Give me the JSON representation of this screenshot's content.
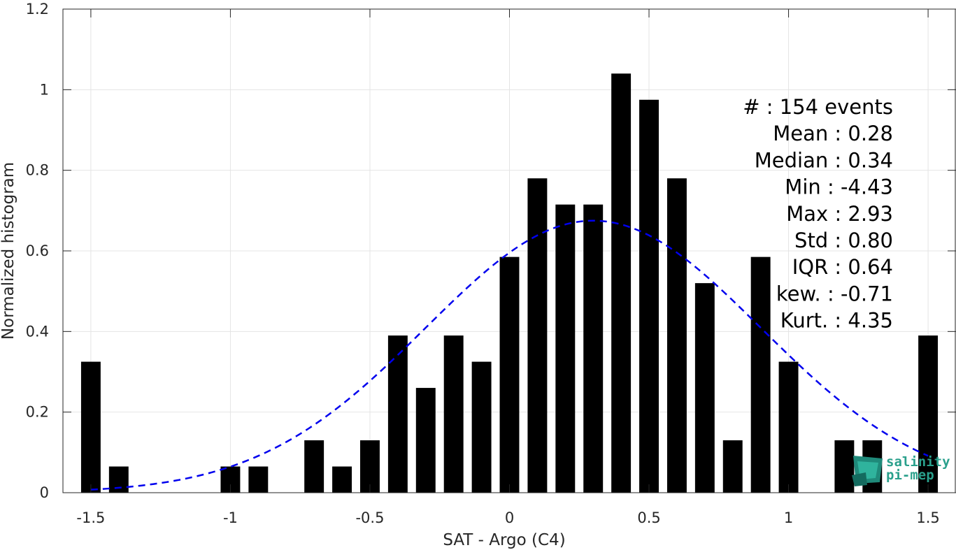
{
  "chart_data": {
    "type": "bar",
    "xlabel": "SAT - Argo (C4)",
    "ylabel": "Normalized histogram",
    "xlim": [
      -1.6,
      1.6
    ],
    "ylim": [
      0,
      1.2
    ],
    "xticks": [
      -1.5,
      -1,
      -0.5,
      0,
      0.5,
      1,
      1.5
    ],
    "xtick_labels": [
      "-1.5",
      "-1",
      "-0.5",
      "0",
      "0.5",
      "1",
      "1.5"
    ],
    "yticks": [
      0,
      0.2,
      0.4,
      0.6,
      0.8,
      1,
      1.2
    ],
    "ytick_labels": [
      "0",
      "0.2",
      "0.4",
      "0.6",
      "0.8",
      "1",
      "1.2"
    ],
    "grid": true,
    "bar_color": "#000000",
    "bar_width": 0.07,
    "bars": [
      {
        "x": -1.5,
        "y": 0.325
      },
      {
        "x": -1.4,
        "y": 0.065
      },
      {
        "x": -1.3,
        "y": 0
      },
      {
        "x": -1.2,
        "y": 0
      },
      {
        "x": -1.1,
        "y": 0
      },
      {
        "x": -1.0,
        "y": 0.065
      },
      {
        "x": -0.9,
        "y": 0.065
      },
      {
        "x": -0.8,
        "y": 0
      },
      {
        "x": -0.7,
        "y": 0.13
      },
      {
        "x": -0.6,
        "y": 0.065
      },
      {
        "x": -0.5,
        "y": 0.13
      },
      {
        "x": -0.4,
        "y": 0.39
      },
      {
        "x": -0.3,
        "y": 0.26
      },
      {
        "x": -0.2,
        "y": 0.39
      },
      {
        "x": -0.1,
        "y": 0.325
      },
      {
        "x": 0.0,
        "y": 0.585
      },
      {
        "x": 0.1,
        "y": 0.78
      },
      {
        "x": 0.2,
        "y": 0.715
      },
      {
        "x": 0.3,
        "y": 0.715
      },
      {
        "x": 0.4,
        "y": 1.04
      },
      {
        "x": 0.5,
        "y": 0.975
      },
      {
        "x": 0.6,
        "y": 0.78
      },
      {
        "x": 0.7,
        "y": 0.52
      },
      {
        "x": 0.8,
        "y": 0.13
      },
      {
        "x": 0.9,
        "y": 0.585
      },
      {
        "x": 1.0,
        "y": 0.325
      },
      {
        "x": 1.1,
        "y": 0
      },
      {
        "x": 1.2,
        "y": 0.13
      },
      {
        "x": 1.3,
        "y": 0.13
      },
      {
        "x": 1.4,
        "y": 0
      },
      {
        "x": 1.5,
        "y": 0.39
      }
    ],
    "fit_curve": {
      "style": "dashed",
      "color": "#0000ee",
      "x_range": [
        -1.5,
        1.5
      ],
      "mean": 0.3,
      "std": 0.6,
      "peak": 0.675
    },
    "stats": [
      "#  : 154 events",
      "Mean : 0.28",
      "Median : 0.34",
      "Min : -4.43",
      "Max : 2.93",
      "Std : 0.80",
      "IQR : 0.64",
      "kew. : -0.71",
      "Kurt. : 4.35"
    ]
  },
  "logo": {
    "line1": "salinity",
    "line2": "pi-mep",
    "color": "#2aa08c"
  }
}
